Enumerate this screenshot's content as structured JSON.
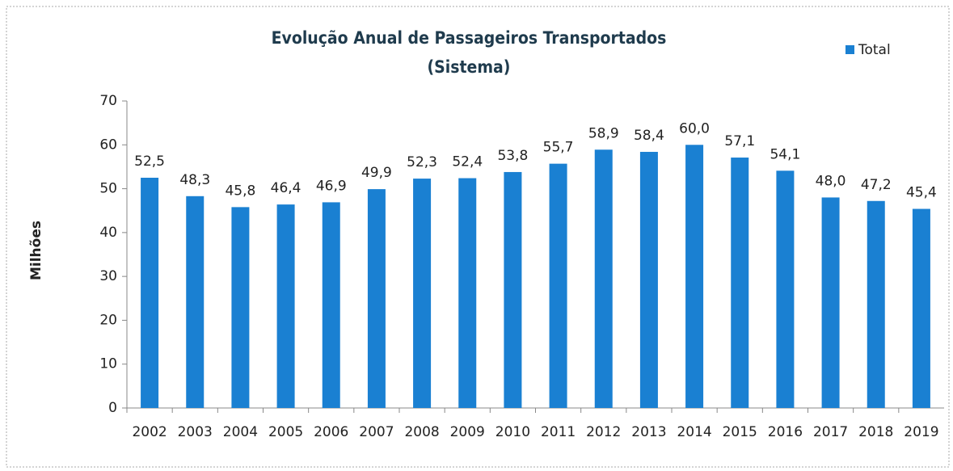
{
  "chart_data": {
    "type": "bar",
    "title": "Evolução Anual de Passageiros Transportados",
    "subtitle": "(Sistema)",
    "y_label": "Milhões",
    "categories": [
      "2002",
      "2003",
      "2004",
      "2005",
      "2006",
      "2007",
      "2008",
      "2009",
      "2010",
      "2011",
      "2012",
      "2013",
      "2014",
      "2015",
      "2016",
      "2017",
      "2018",
      "2019"
    ],
    "series": [
      {
        "name": "Total",
        "color": "#1a80d2",
        "values": [
          52.5,
          48.3,
          45.8,
          46.4,
          46.9,
          49.9,
          52.3,
          52.4,
          53.8,
          55.7,
          58.9,
          58.4,
          60.0,
          57.1,
          54.1,
          48.0,
          47.2,
          45.4
        ],
        "value_labels": [
          "52,5",
          "48,3",
          "45,8",
          "46,4",
          "46,9",
          "49,9",
          "52,3",
          "52,4",
          "53,8",
          "55,7",
          "58,9",
          "58,4",
          "60,0",
          "57,1",
          "54,1",
          "48,0",
          "47,2",
          "45,4"
        ]
      }
    ],
    "ylim": [
      0,
      70
    ],
    "yticks": [
      0,
      10,
      20,
      30,
      40,
      50,
      60,
      70
    ],
    "legend": "top-right"
  }
}
